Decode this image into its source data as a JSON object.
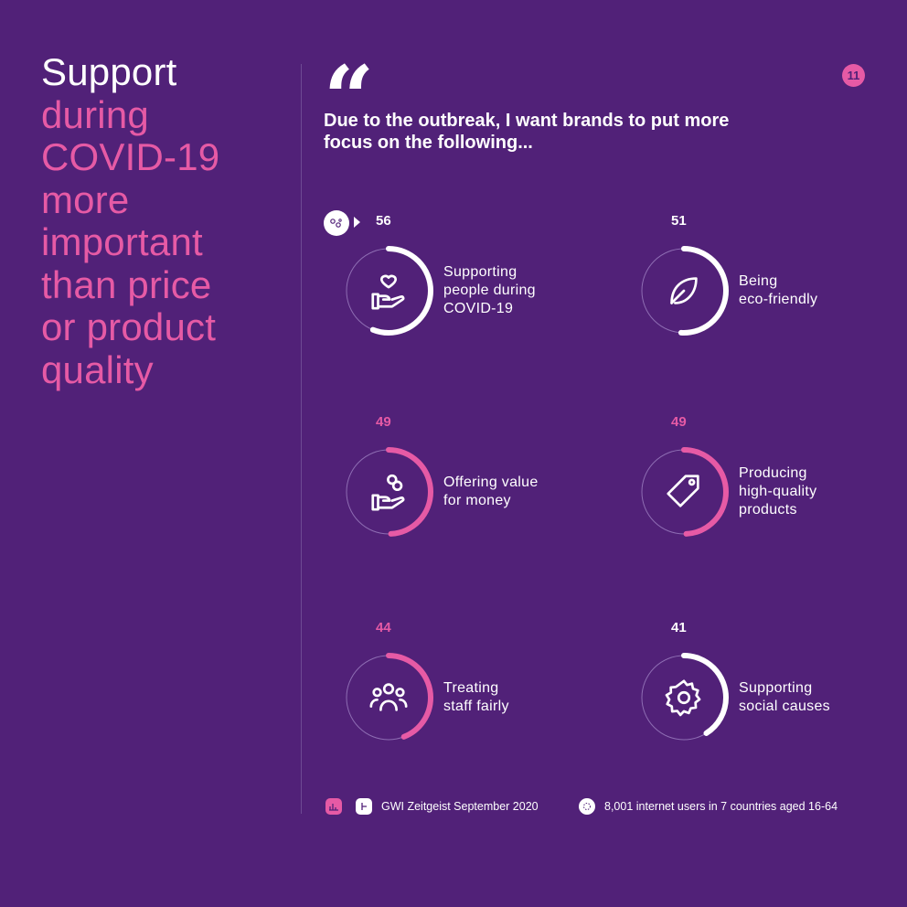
{
  "headline": {
    "line1": "Support",
    "line2": "during",
    "line3": "COVID-19",
    "line4": "more",
    "line5": "important",
    "line6": "than price",
    "line7": "or product",
    "line8": "quality"
  },
  "page_number": "11",
  "question": "Due to the outbreak, I want brands to put more focus on the following...",
  "colors": {
    "background": "#512178",
    "pink": "#e65aa5",
    "white": "#ffffff",
    "track": "#8e6db3"
  },
  "chart_data": {
    "type": "radial",
    "scale_max": 100,
    "items": [
      {
        "value": 56,
        "value_label": "56",
        "label_lines": [
          "Supporting",
          "people during",
          "COVID-19"
        ],
        "icon": "hand-heart-icon",
        "highlight": "white"
      },
      {
        "value": 51,
        "value_label": "51",
        "label_lines": [
          "Being",
          "eco-friendly"
        ],
        "icon": "leaf-icon",
        "highlight": "white"
      },
      {
        "value": 49,
        "value_label": "49",
        "label_lines": [
          "Offering value",
          "for money"
        ],
        "icon": "hand-coins-icon",
        "highlight": "pink"
      },
      {
        "value": 49,
        "value_label": "49",
        "label_lines": [
          "Producing",
          "high-quality",
          "products"
        ],
        "icon": "price-tag-icon",
        "highlight": "pink"
      },
      {
        "value": 44,
        "value_label": "44",
        "label_lines": [
          "Treating",
          "staff fairly"
        ],
        "icon": "people-group-icon",
        "highlight": "pink"
      },
      {
        "value": 41,
        "value_label": "41",
        "label_lines": [
          "Supporting",
          "social causes"
        ],
        "icon": "gear-icon",
        "highlight": "white"
      }
    ]
  },
  "footer": {
    "source": "GWI Zeitgeist September 2020",
    "sample": "8,001 internet users in 7 countries aged 16-64"
  }
}
